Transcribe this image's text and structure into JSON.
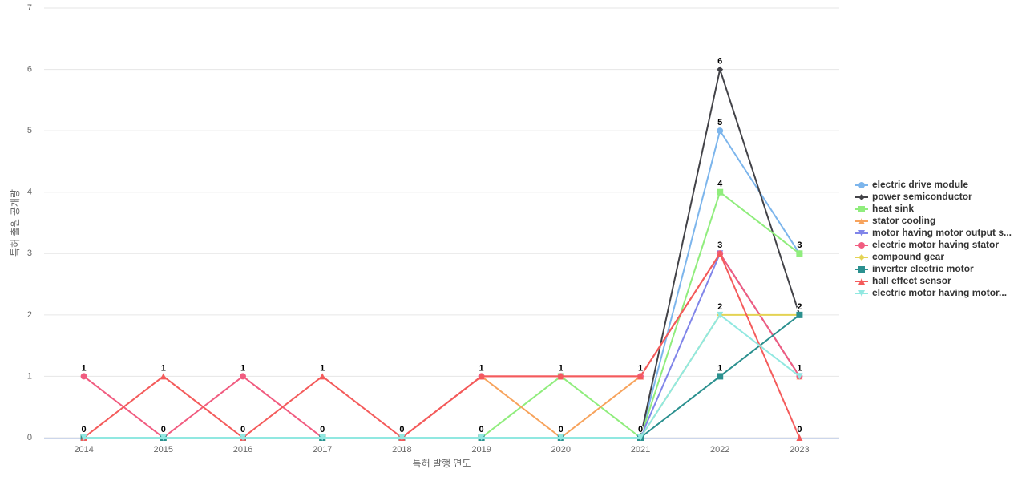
{
  "chart_data": {
    "type": "line",
    "x_label": "특허 발행 연도",
    "y_label": "특허 출원 공개량",
    "categories": [
      "2014",
      "2015",
      "2016",
      "2017",
      "2018",
      "2019",
      "2020",
      "2021",
      "2022",
      "2023"
    ],
    "ylim": [
      0,
      7
    ],
    "yticks": [
      0,
      1,
      2,
      3,
      4,
      5,
      6,
      7
    ],
    "grid": true,
    "legend": "right",
    "series": [
      {
        "name": "electric drive module",
        "color": "#7cb5ec",
        "marker": "circle",
        "values": [
          0,
          0,
          0,
          0,
          0,
          0,
          0,
          0,
          5,
          3
        ]
      },
      {
        "name": "power semiconductor",
        "color": "#434348",
        "marker": "diamond",
        "values": [
          0,
          0,
          0,
          0,
          0,
          0,
          0,
          0,
          6,
          2
        ]
      },
      {
        "name": "heat sink",
        "color": "#90ed7d",
        "marker": "square",
        "values": [
          0,
          0,
          0,
          0,
          0,
          0,
          1,
          0,
          4,
          3
        ]
      },
      {
        "name": "stator cooling",
        "color": "#f7a35c",
        "marker": "triangle",
        "values": [
          0,
          0,
          0,
          0,
          0,
          1,
          0,
          1,
          3,
          1
        ]
      },
      {
        "name": "motor having motor output s...",
        "color": "#8085e9",
        "marker": "triangle-down",
        "values": [
          0,
          0,
          0,
          0,
          0,
          0,
          0,
          0,
          3,
          1
        ]
      },
      {
        "name": "electric motor having stator",
        "color": "#f15c80",
        "marker": "circle",
        "values": [
          1,
          0,
          1,
          0,
          0,
          1,
          1,
          1,
          3,
          1
        ]
      },
      {
        "name": "compound gear",
        "color": "#e4d354",
        "marker": "diamond",
        "values": [
          0,
          0,
          0,
          0,
          0,
          0,
          0,
          0,
          2,
          2
        ]
      },
      {
        "name": "inverter electric motor",
        "color": "#2b908f",
        "marker": "square",
        "values": [
          0,
          0,
          0,
          0,
          0,
          0,
          0,
          0,
          1,
          2
        ]
      },
      {
        "name": "hall effect sensor",
        "color": "#f45b5b",
        "marker": "triangle",
        "values": [
          0,
          1,
          0,
          1,
          0,
          1,
          1,
          1,
          3,
          0
        ]
      },
      {
        "name": "electric motor having motor...",
        "color": "#91e8e1",
        "marker": "triangle-down",
        "values": [
          0,
          0,
          0,
          0,
          0,
          0,
          0,
          0,
          2,
          1
        ]
      }
    ]
  }
}
